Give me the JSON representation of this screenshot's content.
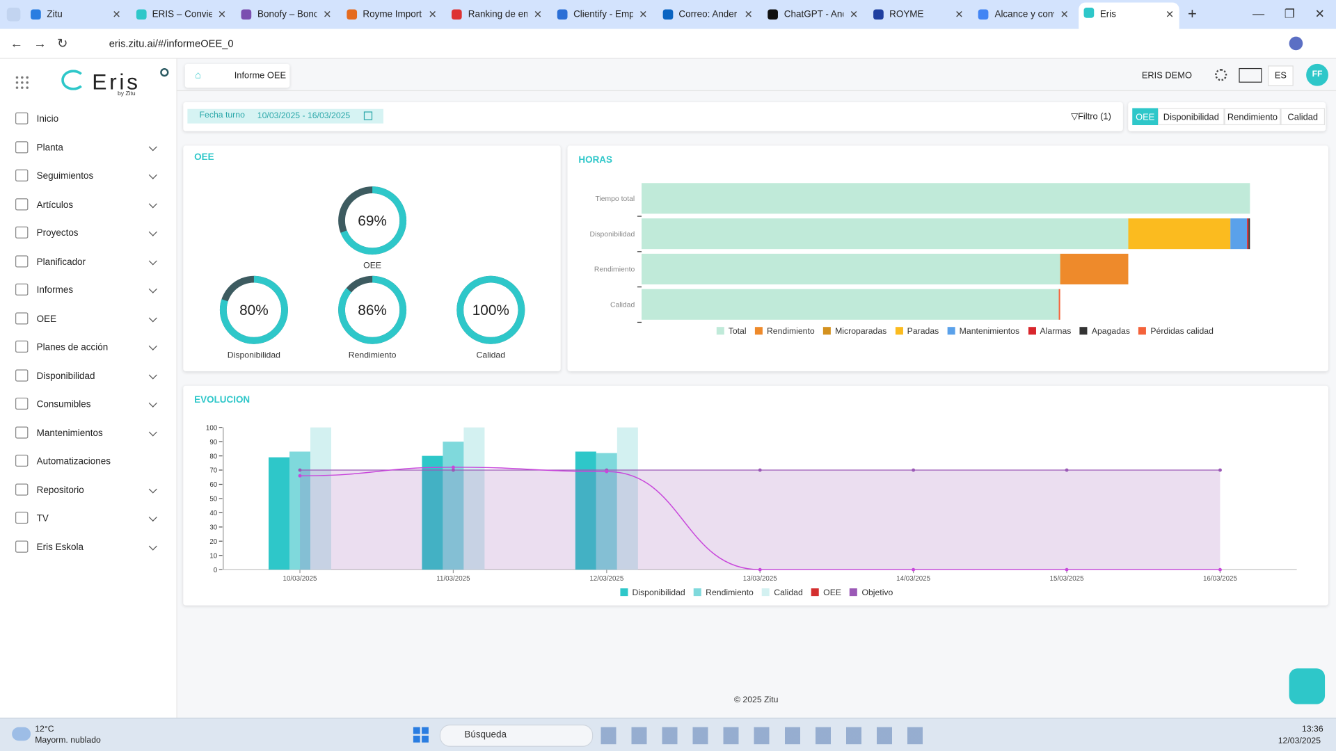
{
  "browser": {
    "tabs": [
      "Zitu",
      "ERIS – Conviert",
      "Bonofy – Bono",
      "Royme Import",
      "Ranking de em",
      "Clientify - Emp",
      "Correo: Ander",
      "ChatGPT - And",
      "ROYME",
      "Alcance y conv",
      "Eris"
    ],
    "url": "eris.zitu.ai/#/informeOEE_0"
  },
  "sidebar": {
    "logo": "Eris",
    "logo_sub": "by Zitu",
    "menu": [
      "Inicio",
      "Planta",
      "Seguimientos",
      "Artículos",
      "Proyectos",
      "Planificador",
      "Informes",
      "OEE",
      "Planes de acción",
      "Disponibilidad",
      "Consumibles",
      "Mantenimientos",
      "Automatizaciones",
      "Repositorio",
      "TV",
      "Eris Eskola"
    ]
  },
  "header": {
    "breadcrumb": "Informe OEE",
    "user": "ERIS DEMO",
    "language": "ES",
    "avatar": "FF"
  },
  "filters": {
    "date_label": "Fecha turno",
    "date_range": "10/03/2025 - 16/03/2025",
    "filter_button": "Filtro (1)",
    "tabs": [
      "OEE",
      "Disponibilidad",
      "Rendimiento",
      "Calidad"
    ]
  },
  "chart_data": [
    {
      "type": "gauge",
      "title": "OEE",
      "categories": [
        "OEE",
        "Disponibilidad",
        "Rendimiento",
        "Calidad"
      ],
      "values": [
        69,
        80,
        86,
        100
      ],
      "value_labels": [
        "69%",
        "80%",
        "86%",
        "100%"
      ],
      "ylim": [
        0,
        100
      ],
      "color": "#2ec7c9",
      "track_color": "#3d5b60"
    },
    {
      "type": "bar",
      "orientation": "horizontal",
      "stacked": true,
      "title": "HORAS",
      "categories": [
        "Tiempo total",
        "Disponibilidad",
        "Rendimiento",
        "Calidad"
      ],
      "xlim": [
        0,
        168
      ],
      "series": [
        {
          "name": "Total",
          "color": "#c0ead9",
          "values": [
            168,
            134.4,
            115.6,
            115.2
          ]
        },
        {
          "name": "Rendimiento",
          "color": "#ee8a2b",
          "values": [
            0,
            0,
            18.8,
            0
          ]
        },
        {
          "name": "Microparadas",
          "color": "#d4911f",
          "values": [
            0,
            0,
            0,
            0
          ]
        },
        {
          "name": "Paradas",
          "color": "#fbbb1f",
          "values": [
            0,
            28.2,
            0,
            0
          ]
        },
        {
          "name": "Mantenimientos",
          "color": "#5aa1ea",
          "values": [
            0,
            4.6,
            0,
            0
          ]
        },
        {
          "name": "Alarmas",
          "color": "#d8262c",
          "values": [
            0,
            0.4,
            0,
            0
          ]
        },
        {
          "name": "Apagadas",
          "color": "#333333",
          "values": [
            0,
            0.4,
            0,
            0
          ]
        },
        {
          "name": "Pérdidas calidad",
          "color": "#f4623a",
          "values": [
            0,
            0,
            0,
            0.4
          ]
        }
      ]
    },
    {
      "type": "combo",
      "title": "EVOLUCION",
      "categories": [
        "10/03/2025",
        "11/03/2025",
        "12/03/2025",
        "13/03/2025",
        "14/03/2025",
        "15/03/2025",
        "16/03/2025"
      ],
      "ylim": [
        0,
        100
      ],
      "yticks": [
        0,
        10,
        20,
        30,
        40,
        50,
        60,
        70,
        80,
        90,
        100
      ],
      "series": [
        {
          "name": "Disponibilidad",
          "kind": "bar",
          "color": "#2ec7c9",
          "values": [
            79,
            80,
            83,
            null,
            null,
            null,
            null
          ]
        },
        {
          "name": "Rendimiento",
          "kind": "bar",
          "color": "#7fd9dc",
          "values": [
            83,
            90,
            82,
            null,
            null,
            null,
            null
          ]
        },
        {
          "name": "Calidad",
          "kind": "bar",
          "color": "#d3f1f1",
          "values": [
            100,
            100,
            100,
            null,
            null,
            null,
            null
          ]
        },
        {
          "name": "OEE",
          "kind": "line",
          "color": "#d42f2f",
          "line_color": "#c847db",
          "values": [
            66,
            72,
            69,
            0,
            0,
            0,
            0
          ]
        },
        {
          "name": "Objetivo",
          "kind": "area",
          "color": "#9b59b6",
          "values": [
            70,
            70,
            70,
            70,
            70,
            70,
            70
          ]
        }
      ]
    }
  ],
  "footer": "© 2025 Zitu",
  "taskbar": {
    "temperature": "12°C",
    "weather": "Mayorm. nublado",
    "search": "Búsqueda",
    "time": "13:36",
    "date": "12/03/2025"
  }
}
